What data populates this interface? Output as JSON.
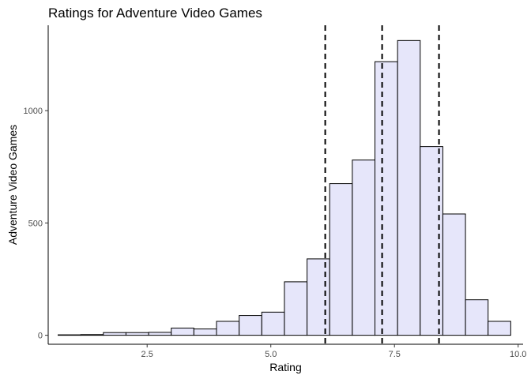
{
  "chart_data": {
    "type": "bar",
    "title": "Ratings for Adventure Video Games",
    "xlabel": "Rating",
    "ylabel": "Adventure Video Games",
    "xlim": [
      0.5,
      10.1
    ],
    "ylim": [
      -40,
      1380
    ],
    "x_ticks": [
      2.5,
      5.0,
      7.5,
      10.0
    ],
    "x_tick_labels": [
      "2.5",
      "5.0",
      "7.5",
      "10.0"
    ],
    "y_ticks": [
      0,
      500,
      1000
    ],
    "y_tick_labels": [
      "0",
      "500",
      "1000"
    ],
    "bins": [
      {
        "start": 0.7,
        "end": 1.2,
        "count": 2
      },
      {
        "start": 1.2,
        "end": 1.7,
        "count": 3
      },
      {
        "start": 1.7,
        "end": 2.2,
        "count": 12
      },
      {
        "start": 2.2,
        "end": 2.7,
        "count": 12
      },
      {
        "start": 2.7,
        "end": 3.2,
        "count": 13
      },
      {
        "start": 3.2,
        "end": 3.7,
        "count": 32
      },
      {
        "start": 3.7,
        "end": 4.2,
        "count": 28
      },
      {
        "start": 4.2,
        "end": 4.7,
        "count": 62
      },
      {
        "start": 4.7,
        "end": 5.2,
        "count": 88
      },
      {
        "start": 5.2,
        "end": 5.7,
        "count": 103
      },
      {
        "start": 5.7,
        "end": 6.2,
        "count": 238
      },
      {
        "start": 6.2,
        "end": 6.7,
        "count": 340
      },
      {
        "start": 6.7,
        "end": 7.2,
        "count": 675
      },
      {
        "start": 7.2,
        "end": 7.7,
        "count": 780
      },
      {
        "start": 7.7,
        "end": 8.2,
        "count": 1218
      },
      {
        "start": 8.2,
        "end": 8.7,
        "count": 1312
      },
      {
        "start": 8.7,
        "end": 9.2,
        "count": 840
      },
      {
        "start": 9.2,
        "end": 9.7,
        "count": 540
      },
      {
        "start": 9.7,
        "end": 10.2,
        "count": 158
      },
      {
        "start": 10.2,
        "end": 10.7,
        "count": 62
      }
    ],
    "reference_lines": [
      6.1,
      7.25,
      8.4
    ],
    "bar_fill": "#e6e6fa",
    "bar_outline": "#000000",
    "grid": false
  }
}
